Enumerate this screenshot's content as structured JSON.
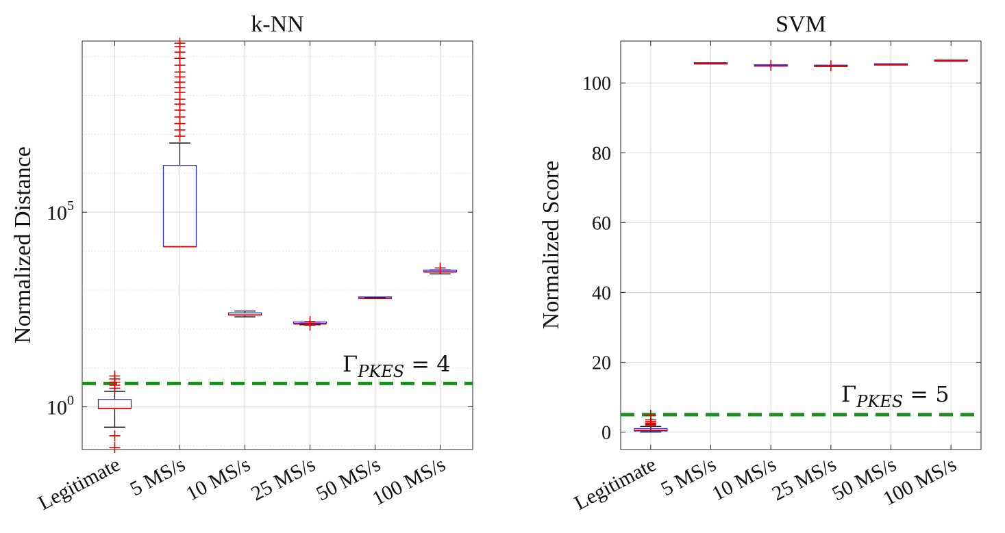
{
  "chart_data": [
    {
      "type": "box",
      "title": "k-NN",
      "xlabel": "",
      "ylabel": "Normalized Distance",
      "yscale": "log",
      "ylim": [
        0.08,
        2500000000
      ],
      "categories": [
        "Legitimate",
        "5 MS/s",
        "10 MS/s",
        "25 MS/s",
        "50 MS/s",
        "100 MS/s"
      ],
      "yticks": [
        {
          "base": "10",
          "exp": "0",
          "value": 1
        },
        {
          "base": "10",
          "exp": "5",
          "value": 100000
        }
      ],
      "series": [
        {
          "name": "Legitimate",
          "q1": 0.9,
          "median": 0.9,
          "q3": 1.55,
          "whisker_low": 0.3,
          "whisker_high": 2.5,
          "outliers": [
            3,
            3.6,
            4.3,
            5.2,
            6.2,
            0.18,
            0.09
          ]
        },
        {
          "name": "5 MS/s",
          "q1": 13000,
          "median": 13000,
          "q3": 1600000,
          "whisker_low": 13000,
          "whisker_high": 6000000,
          "outliers": [
            9000000,
            13000000,
            19000000,
            28000000,
            42000000,
            60000000,
            80000000,
            120000000,
            160000000,
            220000000,
            300000000,
            400000000,
            600000000,
            900000000,
            1300000000,
            1800000000,
            2200000000
          ]
        },
        {
          "name": "10 MS/s",
          "q1": 230,
          "median": 230,
          "q3": 260,
          "whisker_low": 205,
          "whisker_high": 290,
          "outliers": []
        },
        {
          "name": "25 MS/s",
          "q1": 135,
          "median": 135,
          "q3": 145,
          "whisker_low": 128,
          "whisker_high": 150,
          "outliers": [
            125,
            155
          ]
        },
        {
          "name": "50 MS/s",
          "q1": 615,
          "median": 615,
          "q3": 640,
          "whisker_low": 605,
          "whisker_high": 650,
          "outliers": []
        },
        {
          "name": "100 MS/s",
          "q1": 2900,
          "median": 2900,
          "q3": 3100,
          "whisker_low": 2600,
          "whisker_high": 3300,
          "outliers": [
            3700
          ]
        }
      ],
      "threshold": {
        "value": 4,
        "label_prefix": "Γ",
        "label_sub": "PKES",
        "label_suffix": "= 4"
      }
    },
    {
      "type": "box",
      "title": "SVM",
      "xlabel": "",
      "ylabel": "Normalized Score",
      "yscale": "linear",
      "ylim": [
        -5,
        112
      ],
      "categories": [
        "Legitimate",
        "5 MS/s",
        "10 MS/s",
        "25 MS/s",
        "50 MS/s",
        "100 MS/s"
      ],
      "yticks": [
        0,
        20,
        40,
        60,
        80,
        100
      ],
      "series": [
        {
          "name": "Legitimate",
          "q1": 0.3,
          "median": 0.5,
          "q3": 1.0,
          "whisker_low": 0.0,
          "whisker_high": 1.6,
          "outliers": [
            2.0,
            2.3,
            2.6,
            3.0,
            3.5,
            4.8
          ]
        },
        {
          "name": "5 MS/s",
          "q1": 105.6,
          "median": 105.6,
          "q3": 105.6,
          "whisker_low": 105.6,
          "whisker_high": 105.6,
          "outliers": []
        },
        {
          "name": "10 MS/s",
          "q1": 105.0,
          "median": 105.0,
          "q3": 105.0,
          "whisker_low": 105.0,
          "whisker_high": 105.0,
          "outliers": [
            105.0
          ]
        },
        {
          "name": "25 MS/s",
          "q1": 104.9,
          "median": 104.9,
          "q3": 104.9,
          "whisker_low": 104.9,
          "whisker_high": 104.9,
          "outliers": [
            104.9
          ]
        },
        {
          "name": "50 MS/s",
          "q1": 105.3,
          "median": 105.3,
          "q3": 105.3,
          "whisker_low": 105.3,
          "whisker_high": 105.3,
          "outliers": []
        },
        {
          "name": "100 MS/s",
          "q1": 106.4,
          "median": 106.4,
          "q3": 106.4,
          "whisker_low": 106.4,
          "whisker_high": 106.4,
          "outliers": []
        }
      ],
      "threshold": {
        "value": 5,
        "label_prefix": "Γ",
        "label_sub": "PKES",
        "label_suffix": "= 5"
      }
    }
  ],
  "colors": {
    "box": "#2b2bd9",
    "median": "#e00000",
    "outlier": "#e00000",
    "whisker": "#000000",
    "threshold": "#228b22",
    "grid": "#d9d9d9",
    "axes": "#262626"
  }
}
